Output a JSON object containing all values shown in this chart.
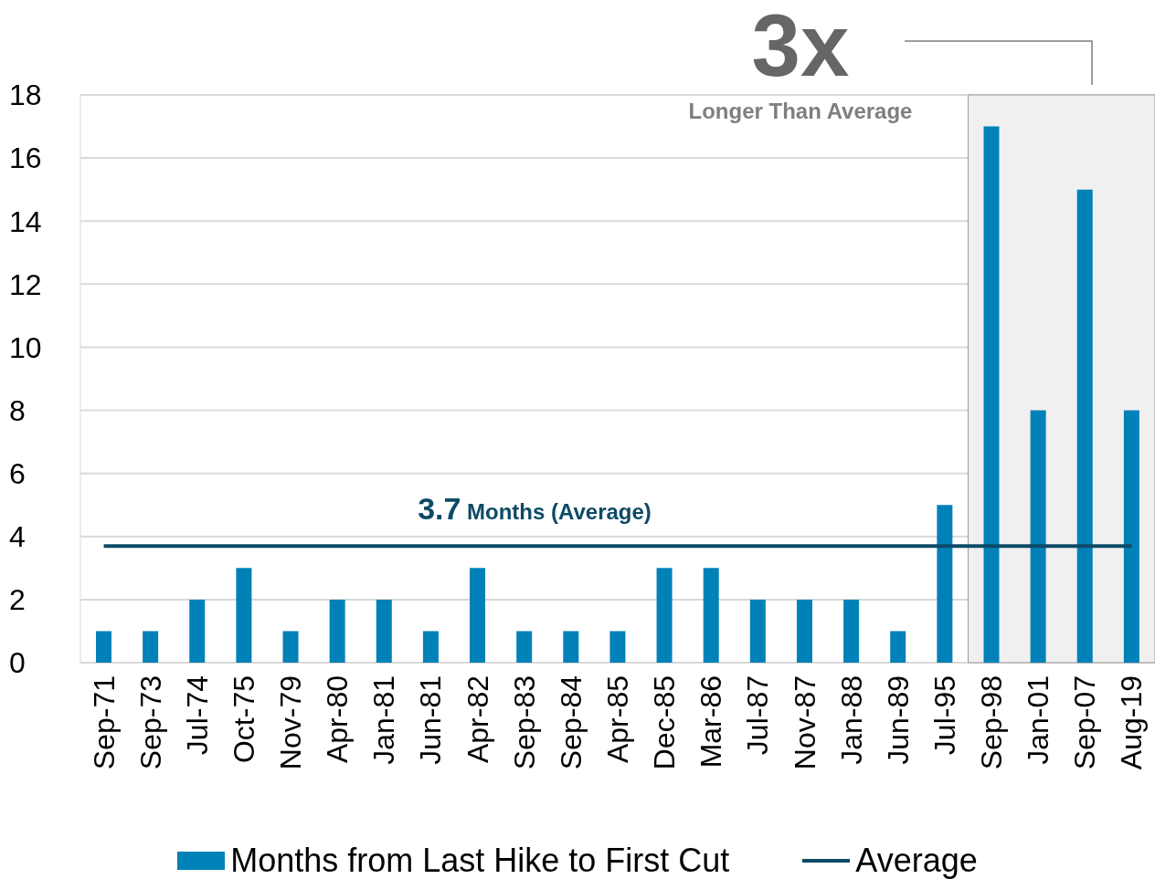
{
  "chart_data": {
    "type": "bar",
    "categories": [
      "Sep-71",
      "Sep-73",
      "Jul-74",
      "Oct-75",
      "Nov-79",
      "Apr-80",
      "Jan-81",
      "Jun-81",
      "Apr-82",
      "Sep-83",
      "Sep-84",
      "Apr-85",
      "Dec-85",
      "Mar-86",
      "Jul-87",
      "Nov-87",
      "Jan-88",
      "Jun-89",
      "Jul-95",
      "Sep-98",
      "Jan-01",
      "Sep-07",
      "Aug-19"
    ],
    "series": [
      {
        "name": "Months from Last Hike to First Cut",
        "color": "#0081b8",
        "values": [
          1,
          1,
          2,
          3,
          1,
          2,
          2,
          1,
          3,
          1,
          1,
          1,
          3,
          3,
          2,
          2,
          2,
          1,
          5,
          17,
          8,
          15,
          8
        ]
      },
      {
        "name": "Average",
        "type": "line",
        "color": "#0d4a66",
        "values": [
          3.7,
          3.7,
          3.7,
          3.7,
          3.7,
          3.7,
          3.7,
          3.7,
          3.7,
          3.7,
          3.7,
          3.7,
          3.7,
          3.7,
          3.7,
          3.7,
          3.7,
          3.7,
          3.7,
          3.7,
          3.7,
          3.7,
          3.7
        ]
      }
    ],
    "ylim": [
      0,
      18
    ],
    "yticks": [
      0,
      2,
      4,
      6,
      8,
      10,
      12,
      14,
      16,
      18
    ],
    "grid": "y",
    "legend": "bottom",
    "marker": "none",
    "line_style": "solid",
    "bands": [
      {
        "axis": "x",
        "from": "Sep-98",
        "to": "Aug-19",
        "color": "#f0f0f0"
      }
    ],
    "annotations": [
      "3x",
      "Longer Than Average",
      "3.7 Months (Average)"
    ]
  }
}
